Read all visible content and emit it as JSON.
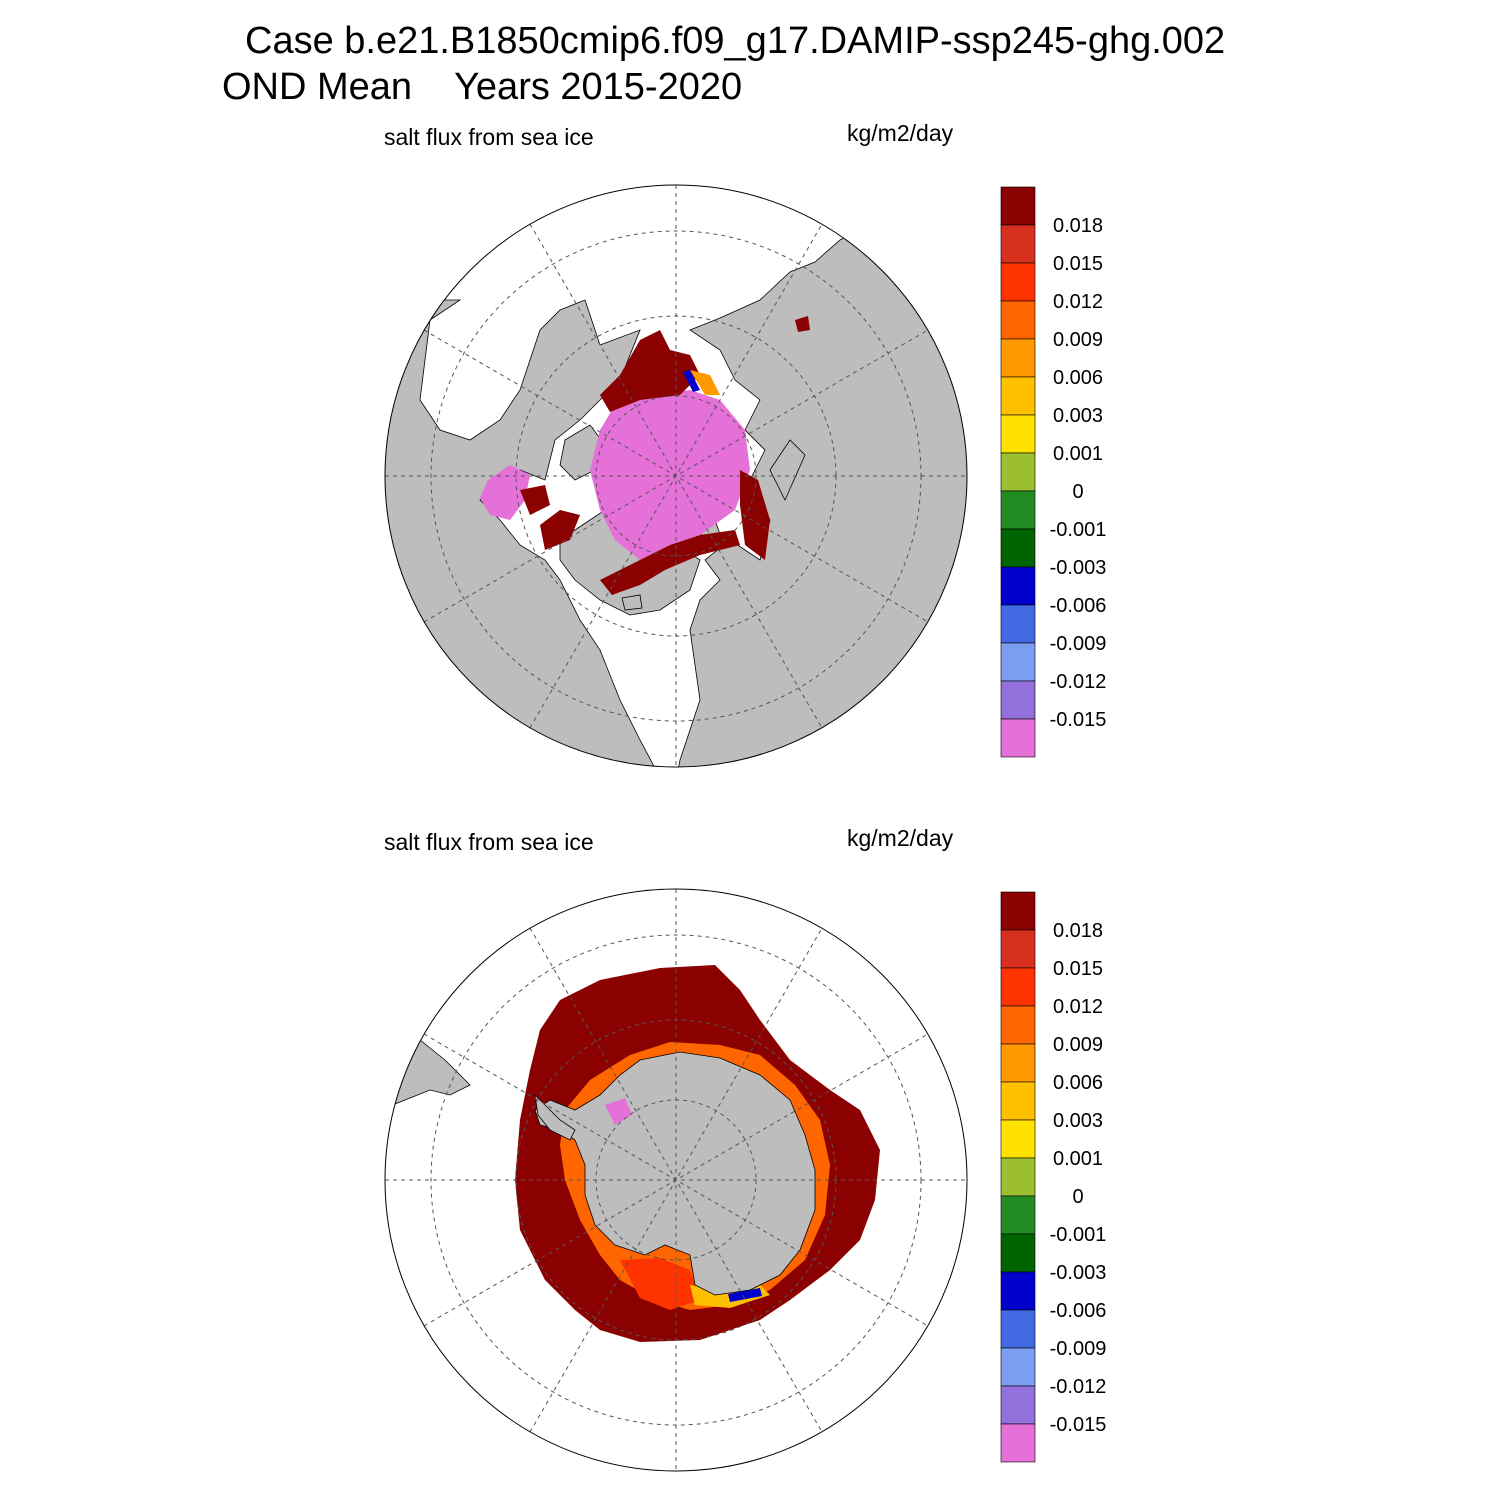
{
  "header": {
    "case_line": "Case b.e21.B1850cmip6.f09_g17.DAMIP-ssp245-ghg.002",
    "season": "OND Mean",
    "years": "Years 2015-2020"
  },
  "panels": [
    {
      "hemisphere": "Northern",
      "variable": "salt flux from sea ice",
      "units": "kg/m2/day"
    },
    {
      "hemisphere": "Southern",
      "variable": "salt flux from sea ice",
      "units": "kg/m2/day"
    }
  ],
  "colorbar": {
    "labels": [
      "0.018",
      "0.015",
      "0.012",
      "0.009",
      "0.006",
      "0.003",
      "0.001",
      "0",
      "-0.001",
      "-0.003",
      "-0.006",
      "-0.009",
      "-0.012",
      "-0.015"
    ],
    "colors": [
      "#8b0000",
      "#d7301f",
      "#ff3300",
      "#ff6600",
      "#ff9900",
      "#ffc000",
      "#ffe200",
      "#9bbf30",
      "#228b22",
      "#006400",
      "#0000cd",
      "#4169e1",
      "#7b9ef0",
      "#9370db",
      "#e571d8"
    ]
  },
  "palette": {
    "land": "#bdbdbd",
    "ocean": "#ffffff",
    "high_flux": "#8b0000",
    "low_flux": "#e571d8"
  }
}
